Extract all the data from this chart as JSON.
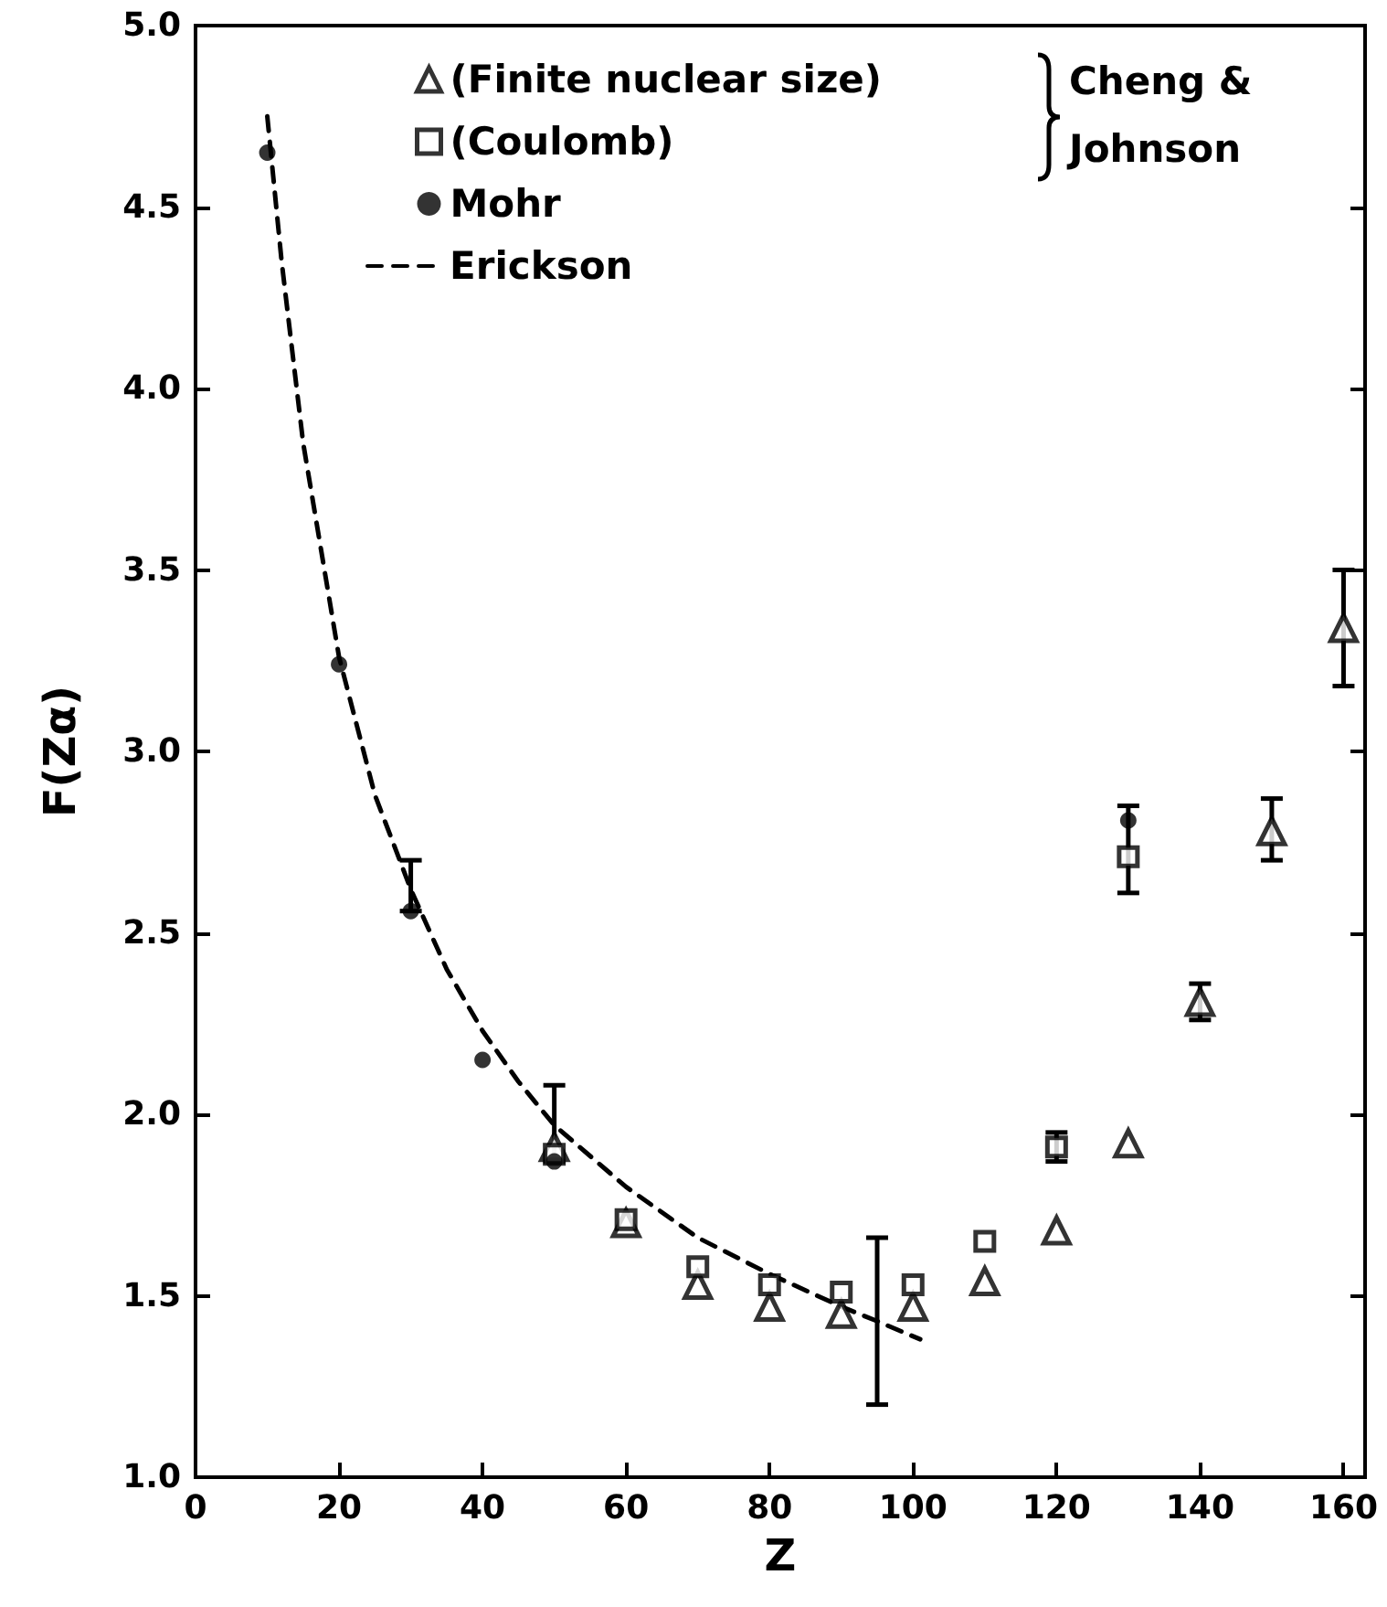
{
  "chart_data": {
    "type": "scatter",
    "xlabel": "Z",
    "ylabel": "F(Zα)",
    "legend_title": "Cheng & Johnson",
    "legend": "top",
    "grid": false,
    "xlim": [
      0,
      163
    ],
    "ylim": [
      1,
      5
    ],
    "xticks": [
      0,
      20,
      40,
      60,
      80,
      100,
      120,
      140,
      160
    ],
    "yticks": [
      {
        "value": 1,
        "label": "1.0"
      },
      {
        "value": 1.5,
        "label": "1.5"
      },
      {
        "value": 2,
        "label": "2.0"
      },
      {
        "value": 2.5,
        "label": "2.5"
      },
      {
        "value": 3,
        "label": "3.0"
      },
      {
        "value": 3.5,
        "label": "3.5"
      },
      {
        "value": 4,
        "label": "4.0"
      },
      {
        "value": 4.5,
        "label": "4.5"
      },
      {
        "value": 5,
        "label": "5.0"
      }
    ],
    "series": [
      {
        "name": "(Finite nuclear size)",
        "marker": "triangle",
        "color": "#000000",
        "x": [
          50,
          60,
          70,
          80,
          90,
          100,
          110,
          120,
          130,
          140,
          150,
          160
        ],
        "values": [
          1.91,
          1.7,
          1.53,
          1.47,
          1.45,
          1.47,
          1.54,
          1.68,
          1.92,
          2.31,
          2.78,
          3.34
        ],
        "errors": [
          null,
          null,
          null,
          null,
          null,
          null,
          null,
          null,
          null,
          [
            2.26,
            2.36
          ],
          [
            2.7,
            2.87
          ],
          [
            3.18,
            3.5
          ]
        ]
      },
      {
        "name": "(Coulomb)",
        "marker": "square",
        "color": "#000000",
        "x": [
          50,
          60,
          70,
          80,
          90,
          100,
          110,
          120,
          130
        ],
        "values": [
          1.89,
          1.71,
          1.58,
          1.53,
          1.51,
          1.53,
          1.65,
          1.91,
          2.71
        ],
        "errors": [
          null,
          null,
          null,
          null,
          null,
          null,
          null,
          [
            1.87,
            1.95
          ],
          [
            2.61,
            2.85
          ]
        ]
      },
      {
        "name": "Mohr",
        "marker": "circle",
        "color": "#000000",
        "x": [
          10,
          20,
          30,
          40,
          50,
          130
        ],
        "values": [
          4.65,
          3.24,
          2.56,
          2.15,
          1.87,
          2.81
        ],
        "errors": [
          null,
          null,
          [
            2.56,
            2.7
          ],
          null,
          [
            1.87,
            2.08
          ],
          null
        ]
      },
      {
        "name": "Erickson",
        "type": "line",
        "marker": "none",
        "line_style": "dashed",
        "color": "#000000",
        "x": [
          10,
          12,
          15,
          20,
          25,
          30,
          35,
          40,
          45,
          50,
          60,
          70,
          80,
          90,
          95,
          101
        ],
        "values": [
          4.75,
          4.35,
          3.85,
          3.26,
          2.88,
          2.62,
          2.4,
          2.23,
          2.09,
          1.97,
          1.8,
          1.66,
          1.56,
          1.47,
          1.43,
          1.38
        ],
        "errors": [
          null,
          null,
          null,
          null,
          null,
          null,
          null,
          null,
          null,
          null,
          null,
          null,
          null,
          null,
          [
            1.2,
            1.66
          ],
          null
        ]
      }
    ]
  }
}
